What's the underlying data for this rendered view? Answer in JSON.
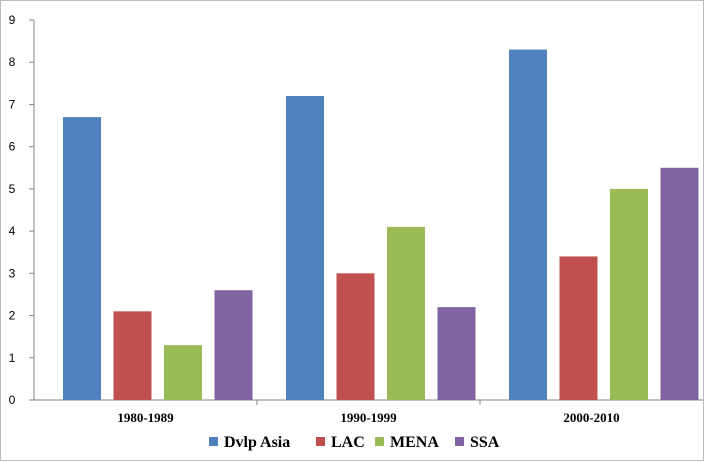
{
  "chart_data": {
    "type": "bar",
    "categories": [
      "1980-1989",
      "1990-1999",
      "2000-2010"
    ],
    "series": [
      {
        "name": "Dvlp Asia",
        "color": "#4f81bd",
        "values": [
          6.7,
          7.2,
          8.3
        ]
      },
      {
        "name": "LAC",
        "color": "#c0504d",
        "values": [
          2.1,
          3.0,
          3.4
        ]
      },
      {
        "name": "MENA",
        "color": "#9bbb59",
        "values": [
          1.3,
          4.1,
          5.0
        ]
      },
      {
        "name": "SSA",
        "color": "#8064a2",
        "values": [
          2.6,
          2.2,
          5.5
        ]
      }
    ],
    "yticks": [
      0,
      1,
      2,
      3,
      4,
      5,
      6,
      7,
      8,
      9
    ],
    "ylim": [
      0,
      9
    ],
    "title": "",
    "xlabel": "",
    "ylabel": "",
    "grid": false,
    "legend_position": "bottom"
  }
}
